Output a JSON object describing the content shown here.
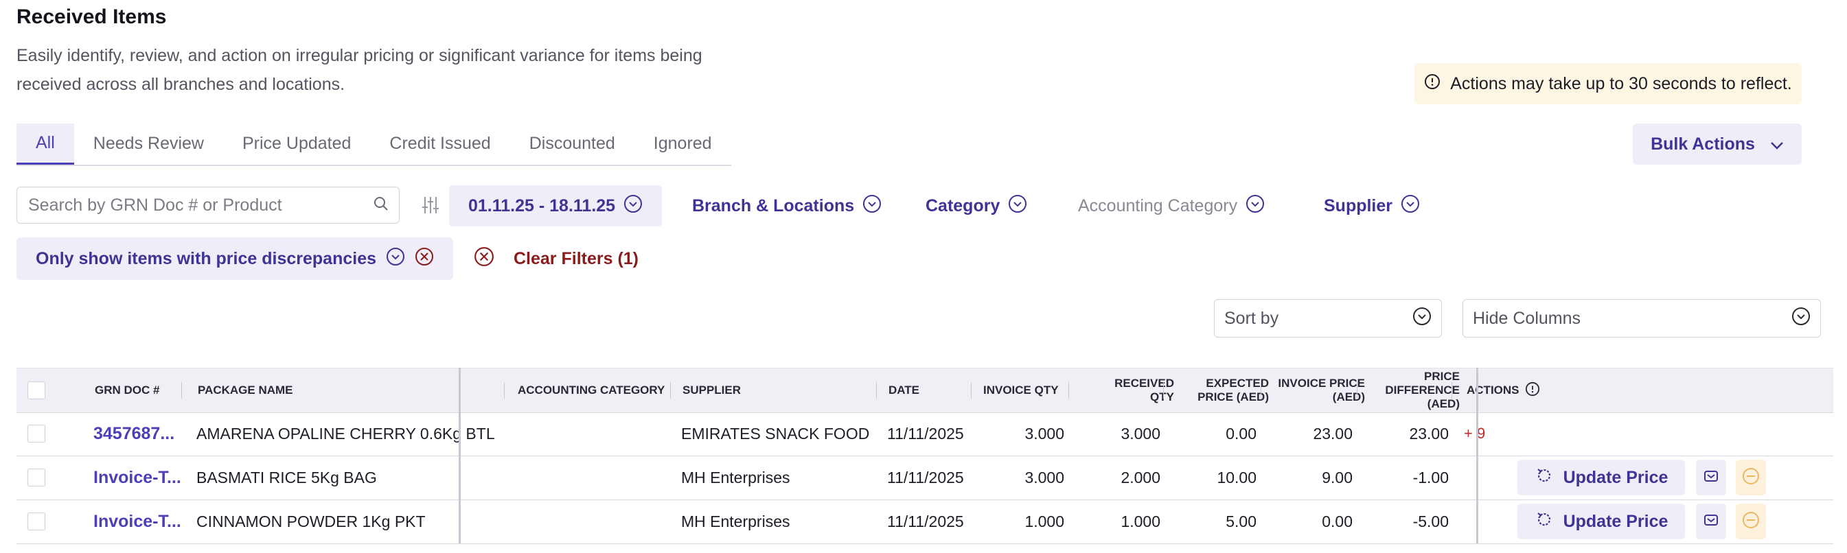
{
  "page": {
    "title": "Received Items",
    "description": "Easily identify, review, and action on irregular pricing or significant variance for items being received across all branches and locations.",
    "notice": "Actions may take up to 30 seconds to reflect."
  },
  "tabs": [
    "All",
    "Needs Review",
    "Price Updated",
    "Credit Issued",
    "Discounted",
    "Ignored"
  ],
  "active_tab": "All",
  "bulk_actions": "Bulk Actions",
  "search": {
    "placeholder": "Search by GRN Doc # or Product",
    "value": ""
  },
  "filters": {
    "date_range": "01.11.25 - 18.11.25",
    "branch": "Branch & Locations",
    "category": "Category",
    "accounting_category": "Accounting Category",
    "supplier": "Supplier"
  },
  "active_filter": "Only show items with price discrepancies",
  "clear_filters": "Clear Filters (1)",
  "sort_by": {
    "placeholder": "Sort by"
  },
  "hide_columns": {
    "placeholder": "Hide Columns"
  },
  "table": {
    "headers": {
      "grn_doc": "GRN DOC #",
      "package_name": "PACKAGE NAME",
      "accounting_category": "ACCOUNTING CATEGORY",
      "supplier": "SUPPLIER",
      "date": "DATE",
      "invoice_qty": "INVOICE QTY",
      "received_qty": "RECEIVED QTY",
      "expected_price": "EXPECTED PRICE (AED)",
      "invoice_price": "INVOICE PRICE (AED)",
      "price_difference": "PRICE DIFFERENCE (AED)",
      "actions": "ACTIONS"
    },
    "rows": [
      {
        "grn_doc": "3457687...",
        "package_name": "AMARENA OPALINE CHERRY 0.6Kg BTL",
        "accounting_category": "",
        "supplier": "EMIRATES SNACK FOOD",
        "date": "11/11/2025",
        "invoice_qty": "3.000",
        "received_qty": "3.000",
        "expected_price": "0.00",
        "invoice_price": "23.00",
        "price_difference": "23.00",
        "overflow": "+ 9"
      },
      {
        "grn_doc": "Invoice-T...",
        "package_name": "BASMATI RICE 5Kg BAG",
        "accounting_category": "",
        "supplier": "MH Enterprises",
        "date": "11/11/2025",
        "invoice_qty": "3.000",
        "received_qty": "2.000",
        "expected_price": "10.00",
        "invoice_price": "9.00",
        "price_difference": "-1.00",
        "action_label": "Update Price"
      },
      {
        "grn_doc": "Invoice-T...",
        "package_name": "CINNAMON POWDER 1Kg PKT",
        "accounting_category": "",
        "supplier": "MH Enterprises",
        "date": "11/11/2025",
        "invoice_qty": "1.000",
        "received_qty": "1.000",
        "expected_price": "5.00",
        "invoice_price": "0.00",
        "price_difference": "-5.00",
        "action_label": "Update Price"
      }
    ]
  },
  "colors": {
    "accent": "#4c3fb8",
    "accent_bg": "#efeef8",
    "danger": "#8a1c1c",
    "notice_bg": "#fdf6e3"
  },
  "icons": [
    "info-icon",
    "chevron-down-icon",
    "search-icon",
    "sliders-icon",
    "close-circle-icon",
    "refresh-icon",
    "mail-icon",
    "minus-circle-icon"
  ]
}
